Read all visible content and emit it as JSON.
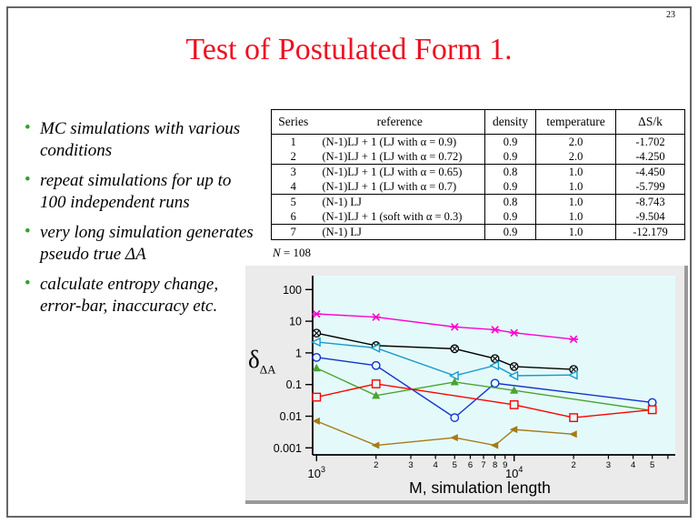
{
  "page_number": "23",
  "title": "Test of Postulated Form 1.",
  "colors": {
    "title": "#EE1122",
    "bullet": "#33A02C"
  },
  "bullets": [
    "MC simulations with various conditions",
    "repeat simulations for up to 100 independent runs",
    "very long simulation generates pseudo true ΔA",
    "calculate entropy change, error-bar, inaccuracy etc."
  ],
  "table": {
    "headers": [
      "Series",
      "reference",
      "density",
      "temperature",
      "ΔS/k"
    ],
    "rows": [
      [
        "1",
        "(N-1)LJ + 1 (LJ with α = 0.9)",
        "0.9",
        "2.0",
        "-1.702"
      ],
      [
        "2",
        "(N-1)LJ + 1 (LJ with α = 0.72)",
        "0.9",
        "2.0",
        "-4.250"
      ],
      [
        "3",
        "(N-1)LJ + 1 (LJ with α = 0.65)",
        "0.8",
        "1.0",
        "-4.450"
      ],
      [
        "4",
        "(N-1)LJ + 1 (LJ with α = 0.7)",
        "0.9",
        "1.0",
        "-5.799"
      ],
      [
        "5",
        "(N-1) LJ",
        "0.8",
        "1.0",
        "-8.743"
      ],
      [
        "6",
        "(N-1)LJ + 1 (soft with α = 0.3)",
        "0.9",
        "1.0",
        "-9.504"
      ],
      [
        "7",
        "(N-1) LJ",
        "0.9",
        "1.0",
        "-12.179"
      ]
    ],
    "note_italic": "N",
    "note_rest": " = 108"
  },
  "chart_data": {
    "type": "line",
    "x_scale": "log",
    "y_scale": "log",
    "xlabel": "M, simulation length",
    "ylabel_main": "δ",
    "ylabel_sub": "ΔA",
    "xlim": [
      1000,
      65000
    ],
    "ylim": [
      0.0006,
      275
    ],
    "grid": false,
    "legend": "none",
    "plot_bg": "#E4FAFA",
    "panel_bg": "#EBEBEB",
    "panel_shadow": "#999999",
    "y_ticks": [
      {
        "v": 100,
        "label": "100"
      },
      {
        "v": 10,
        "label": "10"
      },
      {
        "v": 1,
        "label": "1"
      },
      {
        "v": 0.1,
        "label": "0.1"
      },
      {
        "v": 0.01,
        "label": "0.01"
      },
      {
        "v": 0.001,
        "label": "0.001"
      }
    ],
    "x_major_ticks": [
      {
        "v": 1000,
        "base": "10",
        "exp": "3"
      },
      {
        "v": 10000,
        "base": "10",
        "exp": "4"
      }
    ],
    "x_minor_ticks": [
      {
        "v": 2000,
        "label": "2"
      },
      {
        "v": 3000,
        "label": "3"
      },
      {
        "v": 4000,
        "label": "4"
      },
      {
        "v": 5000,
        "label": "5"
      },
      {
        "v": 6000,
        "label": "6"
      },
      {
        "v": 7000,
        "label": "7"
      },
      {
        "v": 8000,
        "label": "8"
      },
      {
        "v": 9000,
        "label": "9"
      },
      {
        "v": 20000,
        "label": "2"
      },
      {
        "v": 30000,
        "label": "3"
      },
      {
        "v": 40000,
        "label": "4"
      },
      {
        "v": 50000,
        "label": "5"
      },
      {
        "v": 60000,
        "label": ""
      }
    ],
    "series": [
      {
        "name": "magenta-asterisk",
        "marker": "asterisk",
        "color": "#FF00CC",
        "points": [
          [
            1000,
            17
          ],
          [
            2000,
            13.5
          ],
          [
            5000,
            6.6
          ],
          [
            8000,
            5.4
          ],
          [
            10000,
            4.3
          ],
          [
            20000,
            2.7
          ]
        ]
      },
      {
        "name": "black-circle-cross",
        "marker": "circle-x",
        "color": "#000000",
        "points": [
          [
            1000,
            4.2
          ],
          [
            2000,
            1.7
          ],
          [
            5000,
            1.35
          ],
          [
            8000,
            0.66
          ],
          [
            10000,
            0.37
          ],
          [
            20000,
            0.3
          ]
        ]
      },
      {
        "name": "cyan-open-triangle",
        "marker": "triangle-left-open",
        "color": "#1899CC",
        "points": [
          [
            1000,
            2.2
          ],
          [
            2000,
            1.43
          ],
          [
            5000,
            0.19
          ],
          [
            8000,
            0.4
          ],
          [
            10000,
            0.19
          ],
          [
            20000,
            0.2
          ]
        ]
      },
      {
        "name": "blue-open-circle",
        "marker": "circle-open",
        "color": "#1133CC",
        "points": [
          [
            1000,
            0.72
          ],
          [
            2000,
            0.4
          ],
          [
            5000,
            0.009
          ],
          [
            8000,
            0.11
          ],
          [
            50000,
            0.027
          ]
        ]
      },
      {
        "name": "green-filled-triangle",
        "marker": "triangle-up-filled",
        "color": "#4CA32F",
        "points": [
          [
            1000,
            0.33
          ],
          [
            2000,
            0.045
          ],
          [
            5000,
            0.12
          ],
          [
            10000,
            0.065
          ],
          [
            50000,
            0.015
          ]
        ]
      },
      {
        "name": "red-open-square",
        "marker": "square-open",
        "color": "#FF0000",
        "points": [
          [
            1000,
            0.04
          ],
          [
            2000,
            0.105
          ],
          [
            10000,
            0.023
          ],
          [
            20000,
            0.009
          ],
          [
            50000,
            0.016
          ]
        ]
      },
      {
        "name": "brown-filled-triangle",
        "marker": "triangle-left-filled",
        "color": "#A67A18",
        "points": [
          [
            1000,
            0.007
          ],
          [
            2000,
            0.0012
          ],
          [
            5000,
            0.0021
          ],
          [
            8000,
            0.0012
          ],
          [
            10000,
            0.0038
          ],
          [
            20000,
            0.0027
          ]
        ]
      }
    ]
  }
}
